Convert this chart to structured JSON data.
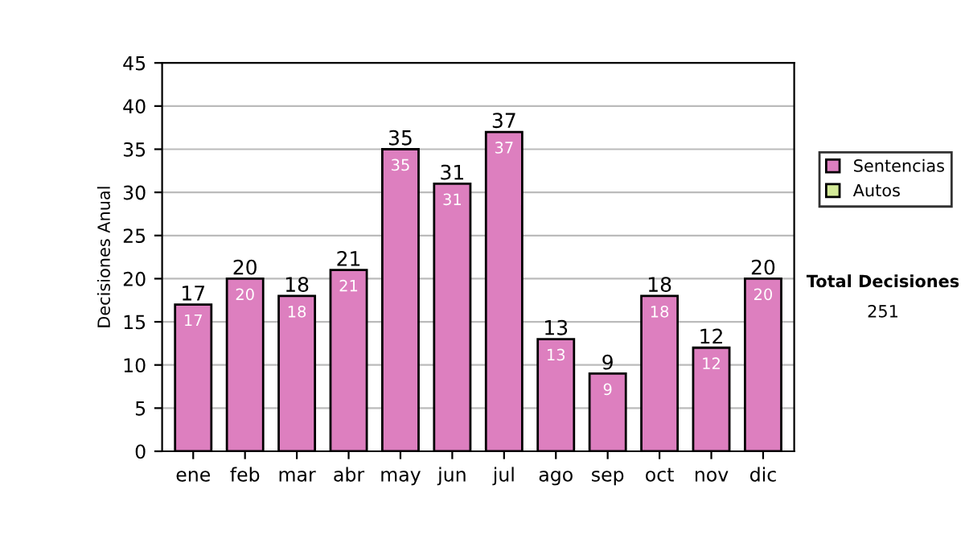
{
  "chart_data": {
    "type": "bar",
    "ylabel": "Decisiones Anual",
    "categories": [
      "ene",
      "feb",
      "mar",
      "abr",
      "may",
      "jun",
      "jul",
      "ago",
      "sep",
      "oct",
      "nov",
      "dic"
    ],
    "series": [
      {
        "name": "Sentencias",
        "color": "#dd7fbf",
        "values": [
          17,
          20,
          18,
          21,
          35,
          31,
          37,
          13,
          9,
          18,
          12,
          20
        ]
      },
      {
        "name": "Autos",
        "color": "#d4ea98",
        "values": [
          null,
          null,
          null,
          null,
          null,
          null,
          null,
          null,
          null,
          null,
          null,
          null
        ]
      }
    ],
    "stacked": true,
    "data_labels": true,
    "totals": [
      "17",
      "20",
      "18",
      "21",
      "35",
      "31",
      "37",
      "13",
      "9",
      "18",
      "12",
      "20"
    ],
    "ylim": [
      0,
      45
    ],
    "yticks": [
      0,
      5,
      10,
      15,
      20,
      25,
      30,
      35,
      40,
      45
    ],
    "grid": "y",
    "legend": "right",
    "annotations": [
      "Total Decisiones",
      "251"
    ]
  }
}
